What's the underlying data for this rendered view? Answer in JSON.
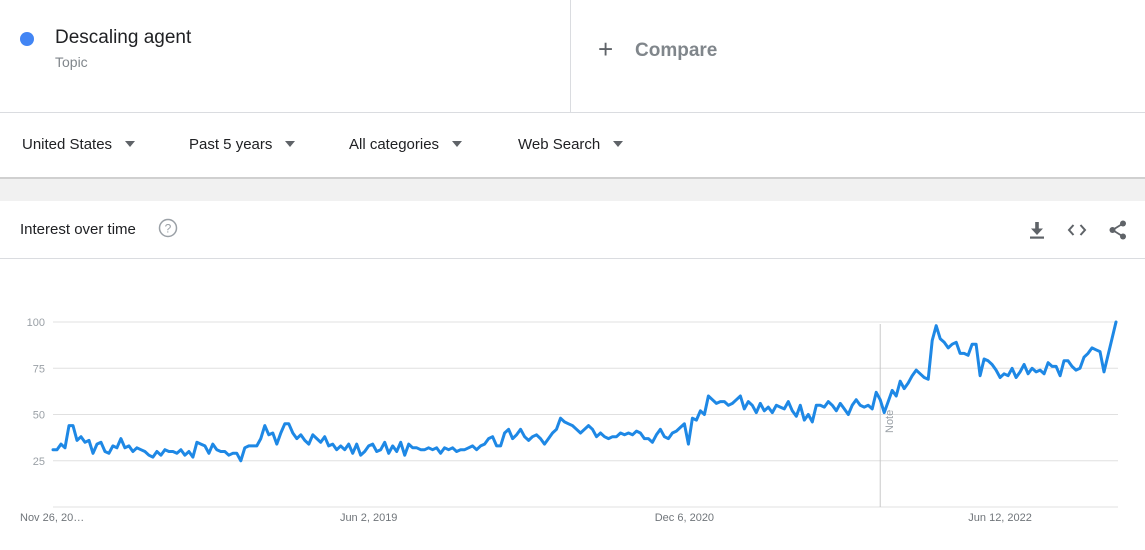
{
  "term": {
    "name": "Descaling agent",
    "type": "Topic",
    "color": "#4285f4"
  },
  "compare": {
    "icon": "plus-icon",
    "label": "Compare"
  },
  "filters": [
    {
      "label": "United States"
    },
    {
      "label": "Past 5 years"
    },
    {
      "label": "All categories"
    },
    {
      "label": "Web Search"
    }
  ],
  "panel": {
    "title": "Interest over time",
    "help_icon": "help-icon",
    "actions": [
      "download-icon",
      "embed-code-icon",
      "share-icon"
    ]
  },
  "chart_data": {
    "type": "line",
    "title": "",
    "xlabel": "",
    "ylabel": "",
    "ylim": [
      0,
      100
    ],
    "y_ticks": [
      25,
      50,
      75,
      100
    ],
    "x_ticks": [
      "Nov 26, 20…",
      "Jun 2, 2019",
      "Dec 6, 2020",
      "Jun 12, 2022"
    ],
    "x_tick_index": [
      0,
      79,
      158,
      237
    ],
    "note": {
      "label": "Note",
      "index": 207
    },
    "line_color": "#1e88e5",
    "grid": true,
    "legend": "none",
    "series": [
      {
        "values": [
          31,
          31,
          34,
          32,
          44,
          44,
          36,
          38,
          35,
          36,
          29,
          34,
          35,
          30,
          29,
          33,
          32,
          37,
          32,
          33,
          30,
          32,
          31,
          30,
          28,
          27,
          30,
          28,
          31,
          30,
          30,
          29,
          31,
          28,
          30,
          27,
          35,
          34,
          33,
          29,
          34,
          31,
          30,
          30,
          28,
          29,
          29,
          25,
          32,
          33,
          33,
          33,
          37,
          44,
          39,
          40,
          34,
          40,
          45,
          45,
          40,
          37,
          39,
          36,
          34,
          39,
          37,
          35,
          38,
          33,
          34,
          31,
          33,
          31,
          34,
          29,
          34,
          28,
          30,
          33,
          34,
          30,
          31,
          35,
          29,
          33,
          30,
          35,
          28,
          34,
          32,
          32,
          31,
          31,
          32,
          31,
          32,
          29,
          32,
          31,
          32,
          30,
          31,
          31,
          32,
          33,
          31,
          33,
          34,
          37,
          38,
          33,
          33,
          40,
          42,
          37,
          39,
          42,
          38,
          36,
          38,
          39,
          37,
          34,
          37,
          40,
          42,
          48,
          46,
          45,
          44,
          42,
          40,
          42,
          44,
          42,
          38,
          40,
          38,
          37,
          38,
          38,
          40,
          39,
          40,
          39,
          41,
          40,
          37,
          37,
          35,
          39,
          42,
          38,
          37,
          40,
          41,
          43,
          45,
          34,
          48,
          47,
          52,
          50,
          60,
          58,
          56,
          57,
          57,
          55,
          56,
          58,
          60,
          53,
          57,
          55,
          51,
          56,
          52,
          54,
          51,
          55,
          54,
          53,
          57,
          52,
          49,
          55,
          47,
          50,
          46,
          55,
          55,
          54,
          57,
          55,
          52,
          56,
          53,
          50,
          55,
          58,
          55,
          54,
          55,
          53,
          62,
          58,
          51,
          57,
          63,
          60,
          68,
          64,
          67,
          71,
          74,
          72,
          70,
          69,
          90,
          98,
          91,
          89,
          86,
          88,
          89,
          83,
          83,
          82,
          88,
          88,
          71,
          80,
          79,
          77,
          74,
          70,
          72,
          71,
          75,
          70,
          73,
          77,
          72,
          75,
          73,
          74,
          72,
          78,
          76,
          76,
          71,
          79,
          79,
          76,
          74,
          75,
          81,
          83,
          86,
          85,
          84,
          73,
          82,
          91,
          100
        ]
      }
    ]
  }
}
